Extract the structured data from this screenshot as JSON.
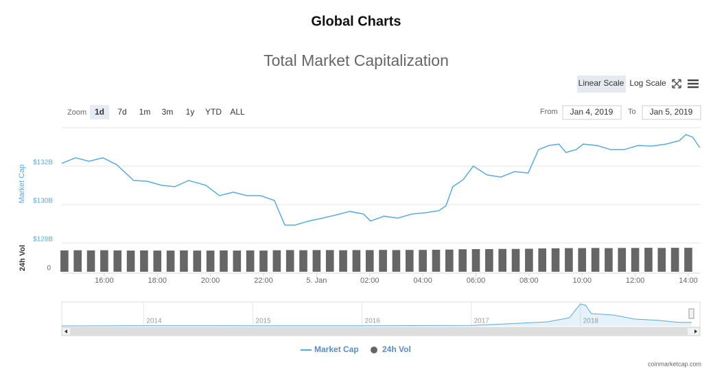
{
  "page_title": "Global Charts",
  "controls": {
    "zoom_label": "Zoom",
    "zoom_buttons": [
      "1d",
      "7d",
      "1m",
      "3m",
      "1y",
      "YTD",
      "ALL"
    ],
    "scale_buttons": [
      "Linear Scale",
      "Log Scale"
    ],
    "from_label": "From",
    "from_value": "Jan 4, 2019",
    "to_label": "To",
    "to_value": "Jan 5, 2019"
  },
  "credit": "coinmarketcap.com",
  "chart_data": {
    "type": "line",
    "title": "Total Market Capitalization",
    "ylabel": "Market Cap",
    "y2label": "24h Vol",
    "xlim": [
      14.4,
      38.44
    ],
    "xticks": [
      {
        "value": 16,
        "label": "16:00"
      },
      {
        "value": 18,
        "label": "18:00"
      },
      {
        "value": 20,
        "label": "20:00"
      },
      {
        "value": 22,
        "label": "22:00"
      },
      {
        "value": 24,
        "label": "5. Jan"
      },
      {
        "value": 26,
        "label": "02:00"
      },
      {
        "value": 28,
        "label": "04:00"
      },
      {
        "value": 30,
        "label": "06:00"
      },
      {
        "value": 32,
        "label": "08:00"
      },
      {
        "value": 34,
        "label": "10:00"
      },
      {
        "value": 36,
        "label": "12:00"
      },
      {
        "value": 38,
        "label": "14:00"
      }
    ],
    "ylim": [
      128,
      134
    ],
    "yticks": [
      {
        "value": 128,
        "label": "$128B"
      },
      {
        "value": 130,
        "label": "$130B"
      },
      {
        "value": 132,
        "label": "$132B"
      }
    ],
    "y2lim": [
      0,
      16
    ],
    "y2ticks": [
      0
    ],
    "grid": true,
    "series": [
      {
        "name": "Market Cap",
        "color": "#5aa9dd",
        "x": [
          14.4,
          14.92,
          15.43,
          15.95,
          16.47,
          17.11,
          17.63,
          18.15,
          18.66,
          19.18,
          19.83,
          20.34,
          20.86,
          21.38,
          21.89,
          22.41,
          22.8,
          23.19,
          23.7,
          24.22,
          24.74,
          25.25,
          25.77,
          26.03,
          26.54,
          27.06,
          27.58,
          28.1,
          28.61,
          28.87,
          29.13,
          29.52,
          29.9,
          30.42,
          30.94,
          31.45,
          31.97,
          32.36,
          32.75,
          33.13,
          33.39,
          33.78,
          34.04,
          34.56,
          35.07,
          35.59,
          36.11,
          36.62,
          37.14,
          37.66,
          37.91,
          38.17,
          38.43
        ],
        "values": [
          132.14,
          132.43,
          132.25,
          132.43,
          132.07,
          131.25,
          131.21,
          131.0,
          130.93,
          131.25,
          131.0,
          130.46,
          130.64,
          130.46,
          130.46,
          130.21,
          128.93,
          128.93,
          129.14,
          129.29,
          129.46,
          129.64,
          129.5,
          129.14,
          129.39,
          129.29,
          129.5,
          129.57,
          129.68,
          129.93,
          130.93,
          131.29,
          132.0,
          131.54,
          131.43,
          131.71,
          131.64,
          132.86,
          133.07,
          133.14,
          132.71,
          132.86,
          133.14,
          133.07,
          132.86,
          132.86,
          133.07,
          133.04,
          133.14,
          133.32,
          133.64,
          133.5,
          132.96
        ]
      },
      {
        "name": "24h Vol",
        "color": "#666666",
        "axis": "y2",
        "x": [
          14.5,
          15,
          15.5,
          16,
          16.5,
          17,
          17.5,
          18,
          18.5,
          19,
          19.5,
          20,
          20.5,
          21,
          21.5,
          22,
          22.5,
          23,
          23.5,
          24,
          24.5,
          25,
          25.5,
          26,
          26.5,
          27,
          27.5,
          28,
          28.5,
          29,
          29.5,
          30,
          30.5,
          31,
          31.5,
          32,
          32.5,
          33,
          33.5,
          34,
          34.5,
          35,
          35.5,
          36,
          36.5,
          37,
          37.5,
          38
        ],
        "values": [
          13.1,
          13.2,
          13.1,
          13.2,
          13.1,
          13.0,
          13.1,
          13.0,
          13.0,
          13.1,
          13.0,
          13.0,
          13.1,
          13.0,
          13.1,
          13.0,
          13.2,
          13.3,
          13.2,
          13.3,
          13.3,
          13.2,
          13.3,
          13.3,
          13.4,
          13.3,
          13.4,
          13.4,
          13.5,
          13.6,
          13.8,
          13.9,
          13.9,
          14.0,
          14.0,
          14.1,
          14.3,
          14.4,
          14.5,
          14.5,
          14.6,
          14.5,
          14.6,
          14.6,
          14.7,
          14.6,
          14.7,
          14.7
        ]
      }
    ],
    "navigator": {
      "xlim": [
        2013.25,
        2019.02
      ],
      "ylim": [
        0,
        850
      ],
      "xticks": [
        2014,
        2015,
        2016,
        2017,
        2018
      ],
      "x": [
        2013.25,
        2014,
        2014.5,
        2015,
        2016,
        2017,
        2017.4,
        2017.7,
        2017.9,
        2018.0,
        2018.05,
        2018.1,
        2018.3,
        2018.5,
        2018.7,
        2018.9,
        2019.02
      ],
      "values": [
        1,
        10,
        8,
        5,
        7,
        18,
        90,
        150,
        300,
        800,
        750,
        450,
        400,
        250,
        210,
        130,
        130
      ]
    }
  }
}
